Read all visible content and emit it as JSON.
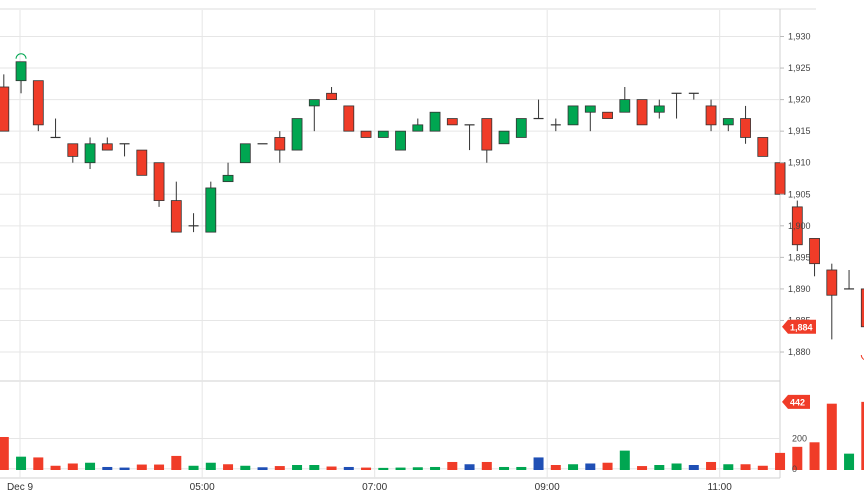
{
  "chart_data": {
    "type": "candlestick",
    "price_axis": {
      "ticks": [
        "1,880",
        "1,885",
        "1,890",
        "1,895",
        "1,900",
        "1,905",
        "1,910",
        "1,915",
        "1,920",
        "1,925",
        "1,930"
      ],
      "tick_values": [
        1880,
        1885,
        1890,
        1895,
        1900,
        1905,
        1910,
        1915,
        1920,
        1925,
        1930
      ],
      "range": [
        1876.2,
        1934.2
      ]
    },
    "volume_axis": {
      "ticks": [
        "0",
        "200"
      ],
      "tick_values": [
        0,
        200
      ],
      "range": [
        -8,
        560
      ]
    },
    "time_axis": {
      "labels": [
        {
          "text": "Dec 9",
          "index": 0.5
        },
        {
          "text": "05:00",
          "index": 11.5
        },
        {
          "text": "07:00",
          "index": 21.5
        },
        {
          "text": "09:00",
          "index": 31.5
        },
        {
          "text": "11:00",
          "index": 41.5
        }
      ]
    },
    "last_price_label": "1,884",
    "last_price": 1884,
    "last_volume_label": "442",
    "last_volume": 442,
    "colors": {
      "up": "#00a651",
      "down": "#f03c28",
      "neutral": "#1f4fb5",
      "wick": "#333333"
    },
    "candles": [
      {
        "o": 1922,
        "h": 1924,
        "l": 1915,
        "c": 1915,
        "v": 210,
        "vc": "down"
      },
      {
        "o": 1923,
        "h": 1926,
        "l": 1921,
        "c": 1926,
        "v": 80,
        "vc": "up"
      },
      {
        "o": 1923,
        "h": 1923,
        "l": 1915,
        "c": 1916,
        "v": 75,
        "vc": "down"
      },
      {
        "o": 1914,
        "h": 1917,
        "l": 1914,
        "c": 1914,
        "v": 20,
        "vc": "down"
      },
      {
        "o": 1913,
        "h": 1913,
        "l": 1910,
        "c": 1911,
        "v": 35,
        "vc": "down"
      },
      {
        "o": 1910,
        "h": 1914,
        "l": 1909,
        "c": 1913,
        "v": 40,
        "vc": "up"
      },
      {
        "o": 1913,
        "h": 1914,
        "l": 1912,
        "c": 1912,
        "v": 12,
        "vc": "neutral"
      },
      {
        "o": 1913,
        "h": 1913,
        "l": 1911,
        "c": 1913,
        "v": 8,
        "vc": "neutral"
      },
      {
        "o": 1912,
        "h": 1912,
        "l": 1908,
        "c": 1908,
        "v": 28,
        "vc": "down"
      },
      {
        "o": 1910,
        "h": 1910,
        "l": 1903,
        "c": 1904,
        "v": 28,
        "vc": "down"
      },
      {
        "o": 1904,
        "h": 1907,
        "l": 1899,
        "c": 1899,
        "v": 85,
        "vc": "down"
      },
      {
        "o": 1900,
        "h": 1902,
        "l": 1899,
        "c": 1900,
        "v": 20,
        "vc": "up"
      },
      {
        "o": 1899,
        "h": 1907,
        "l": 1899,
        "c": 1906,
        "v": 40,
        "vc": "up"
      },
      {
        "o": 1907,
        "h": 1910,
        "l": 1907,
        "c": 1908,
        "v": 30,
        "vc": "down"
      },
      {
        "o": 1910,
        "h": 1913,
        "l": 1910,
        "c": 1913,
        "v": 20,
        "vc": "up"
      },
      {
        "o": 1913,
        "h": 1913,
        "l": 1913,
        "c": 1913,
        "v": 10,
        "vc": "neutral"
      },
      {
        "o": 1914,
        "h": 1915,
        "l": 1910,
        "c": 1912,
        "v": 18,
        "vc": "down"
      },
      {
        "o": 1912,
        "h": 1917,
        "l": 1912,
        "c": 1917,
        "v": 25,
        "vc": "up"
      },
      {
        "o": 1919,
        "h": 1920,
        "l": 1915,
        "c": 1920,
        "v": 25,
        "vc": "up"
      },
      {
        "o": 1921,
        "h": 1922,
        "l": 1920,
        "c": 1920,
        "v": 15,
        "vc": "down"
      },
      {
        "o": 1919,
        "h": 1919,
        "l": 1915,
        "c": 1915,
        "v": 12,
        "vc": "neutral"
      },
      {
        "o": 1915,
        "h": 1915,
        "l": 1914,
        "c": 1914,
        "v": 8,
        "vc": "down"
      },
      {
        "o": 1914,
        "h": 1915,
        "l": 1914,
        "c": 1915,
        "v": 6,
        "vc": "up"
      },
      {
        "o": 1912,
        "h": 1915,
        "l": 1912,
        "c": 1915,
        "v": 8,
        "vc": "up"
      },
      {
        "o": 1915,
        "h": 1917,
        "l": 1915,
        "c": 1916,
        "v": 10,
        "vc": "up"
      },
      {
        "o": 1915,
        "h": 1918,
        "l": 1915,
        "c": 1918,
        "v": 12,
        "vc": "up"
      },
      {
        "o": 1917,
        "h": 1917,
        "l": 1916,
        "c": 1916,
        "v": 45,
        "vc": "down"
      },
      {
        "o": 1916,
        "h": 1916,
        "l": 1912,
        "c": 1916,
        "v": 30,
        "vc": "neutral"
      },
      {
        "o": 1917,
        "h": 1917,
        "l": 1910,
        "c": 1912,
        "v": 45,
        "vc": "down"
      },
      {
        "o": 1913,
        "h": 1915,
        "l": 1913,
        "c": 1915,
        "v": 12,
        "vc": "up"
      },
      {
        "o": 1914,
        "h": 1917,
        "l": 1914,
        "c": 1917,
        "v": 12,
        "vc": "up"
      },
      {
        "o": 1917,
        "h": 1920,
        "l": 1917,
        "c": 1917,
        "v": 75,
        "vc": "neutral"
      },
      {
        "o": 1916,
        "h": 1917,
        "l": 1915,
        "c": 1916,
        "v": 25,
        "vc": "down"
      },
      {
        "o": 1916,
        "h": 1919,
        "l": 1916,
        "c": 1919,
        "v": 30,
        "vc": "up"
      },
      {
        "o": 1918,
        "h": 1919,
        "l": 1915,
        "c": 1919,
        "v": 35,
        "vc": "neutral"
      },
      {
        "o": 1918,
        "h": 1918,
        "l": 1917,
        "c": 1917,
        "v": 40,
        "vc": "down"
      },
      {
        "o": 1918,
        "h": 1922,
        "l": 1918,
        "c": 1920,
        "v": 120,
        "vc": "up"
      },
      {
        "o": 1920,
        "h": 1920,
        "l": 1916,
        "c": 1916,
        "v": 18,
        "vc": "down"
      },
      {
        "o": 1918,
        "h": 1920,
        "l": 1917,
        "c": 1919,
        "v": 25,
        "vc": "up"
      },
      {
        "o": 1921,
        "h": 1921,
        "l": 1917,
        "c": 1921,
        "v": 35,
        "vc": "up"
      },
      {
        "o": 1921,
        "h": 1921,
        "l": 1920,
        "c": 1921,
        "v": 25,
        "vc": "neutral"
      },
      {
        "o": 1919,
        "h": 1920,
        "l": 1915,
        "c": 1916,
        "v": 45,
        "vc": "down"
      },
      {
        "o": 1916,
        "h": 1917,
        "l": 1915,
        "c": 1917,
        "v": 30,
        "vc": "up"
      },
      {
        "o": 1917,
        "h": 1919,
        "l": 1913,
        "c": 1914,
        "v": 30,
        "vc": "down"
      },
      {
        "o": 1914,
        "h": 1914,
        "l": 1911,
        "c": 1911,
        "v": 20,
        "vc": "down"
      },
      {
        "o": 1910,
        "h": 1910,
        "l": 1905,
        "c": 1905,
        "v": 105,
        "vc": "down"
      },
      {
        "o": 1903,
        "h": 1904,
        "l": 1896,
        "c": 1897,
        "v": 145,
        "vc": "down"
      },
      {
        "o": 1898,
        "h": 1898,
        "l": 1892,
        "c": 1894,
        "v": 175,
        "vc": "down"
      },
      {
        "o": 1893,
        "h": 1894,
        "l": 1882,
        "c": 1889,
        "v": 430,
        "vc": "down"
      },
      {
        "o": 1890,
        "h": 1893,
        "l": 1890,
        "c": 1890,
        "v": 100,
        "vc": "up"
      },
      {
        "o": 1890,
        "h": 1890,
        "l": 1880,
        "c": 1884,
        "v": 442,
        "vc": "down"
      }
    ]
  }
}
